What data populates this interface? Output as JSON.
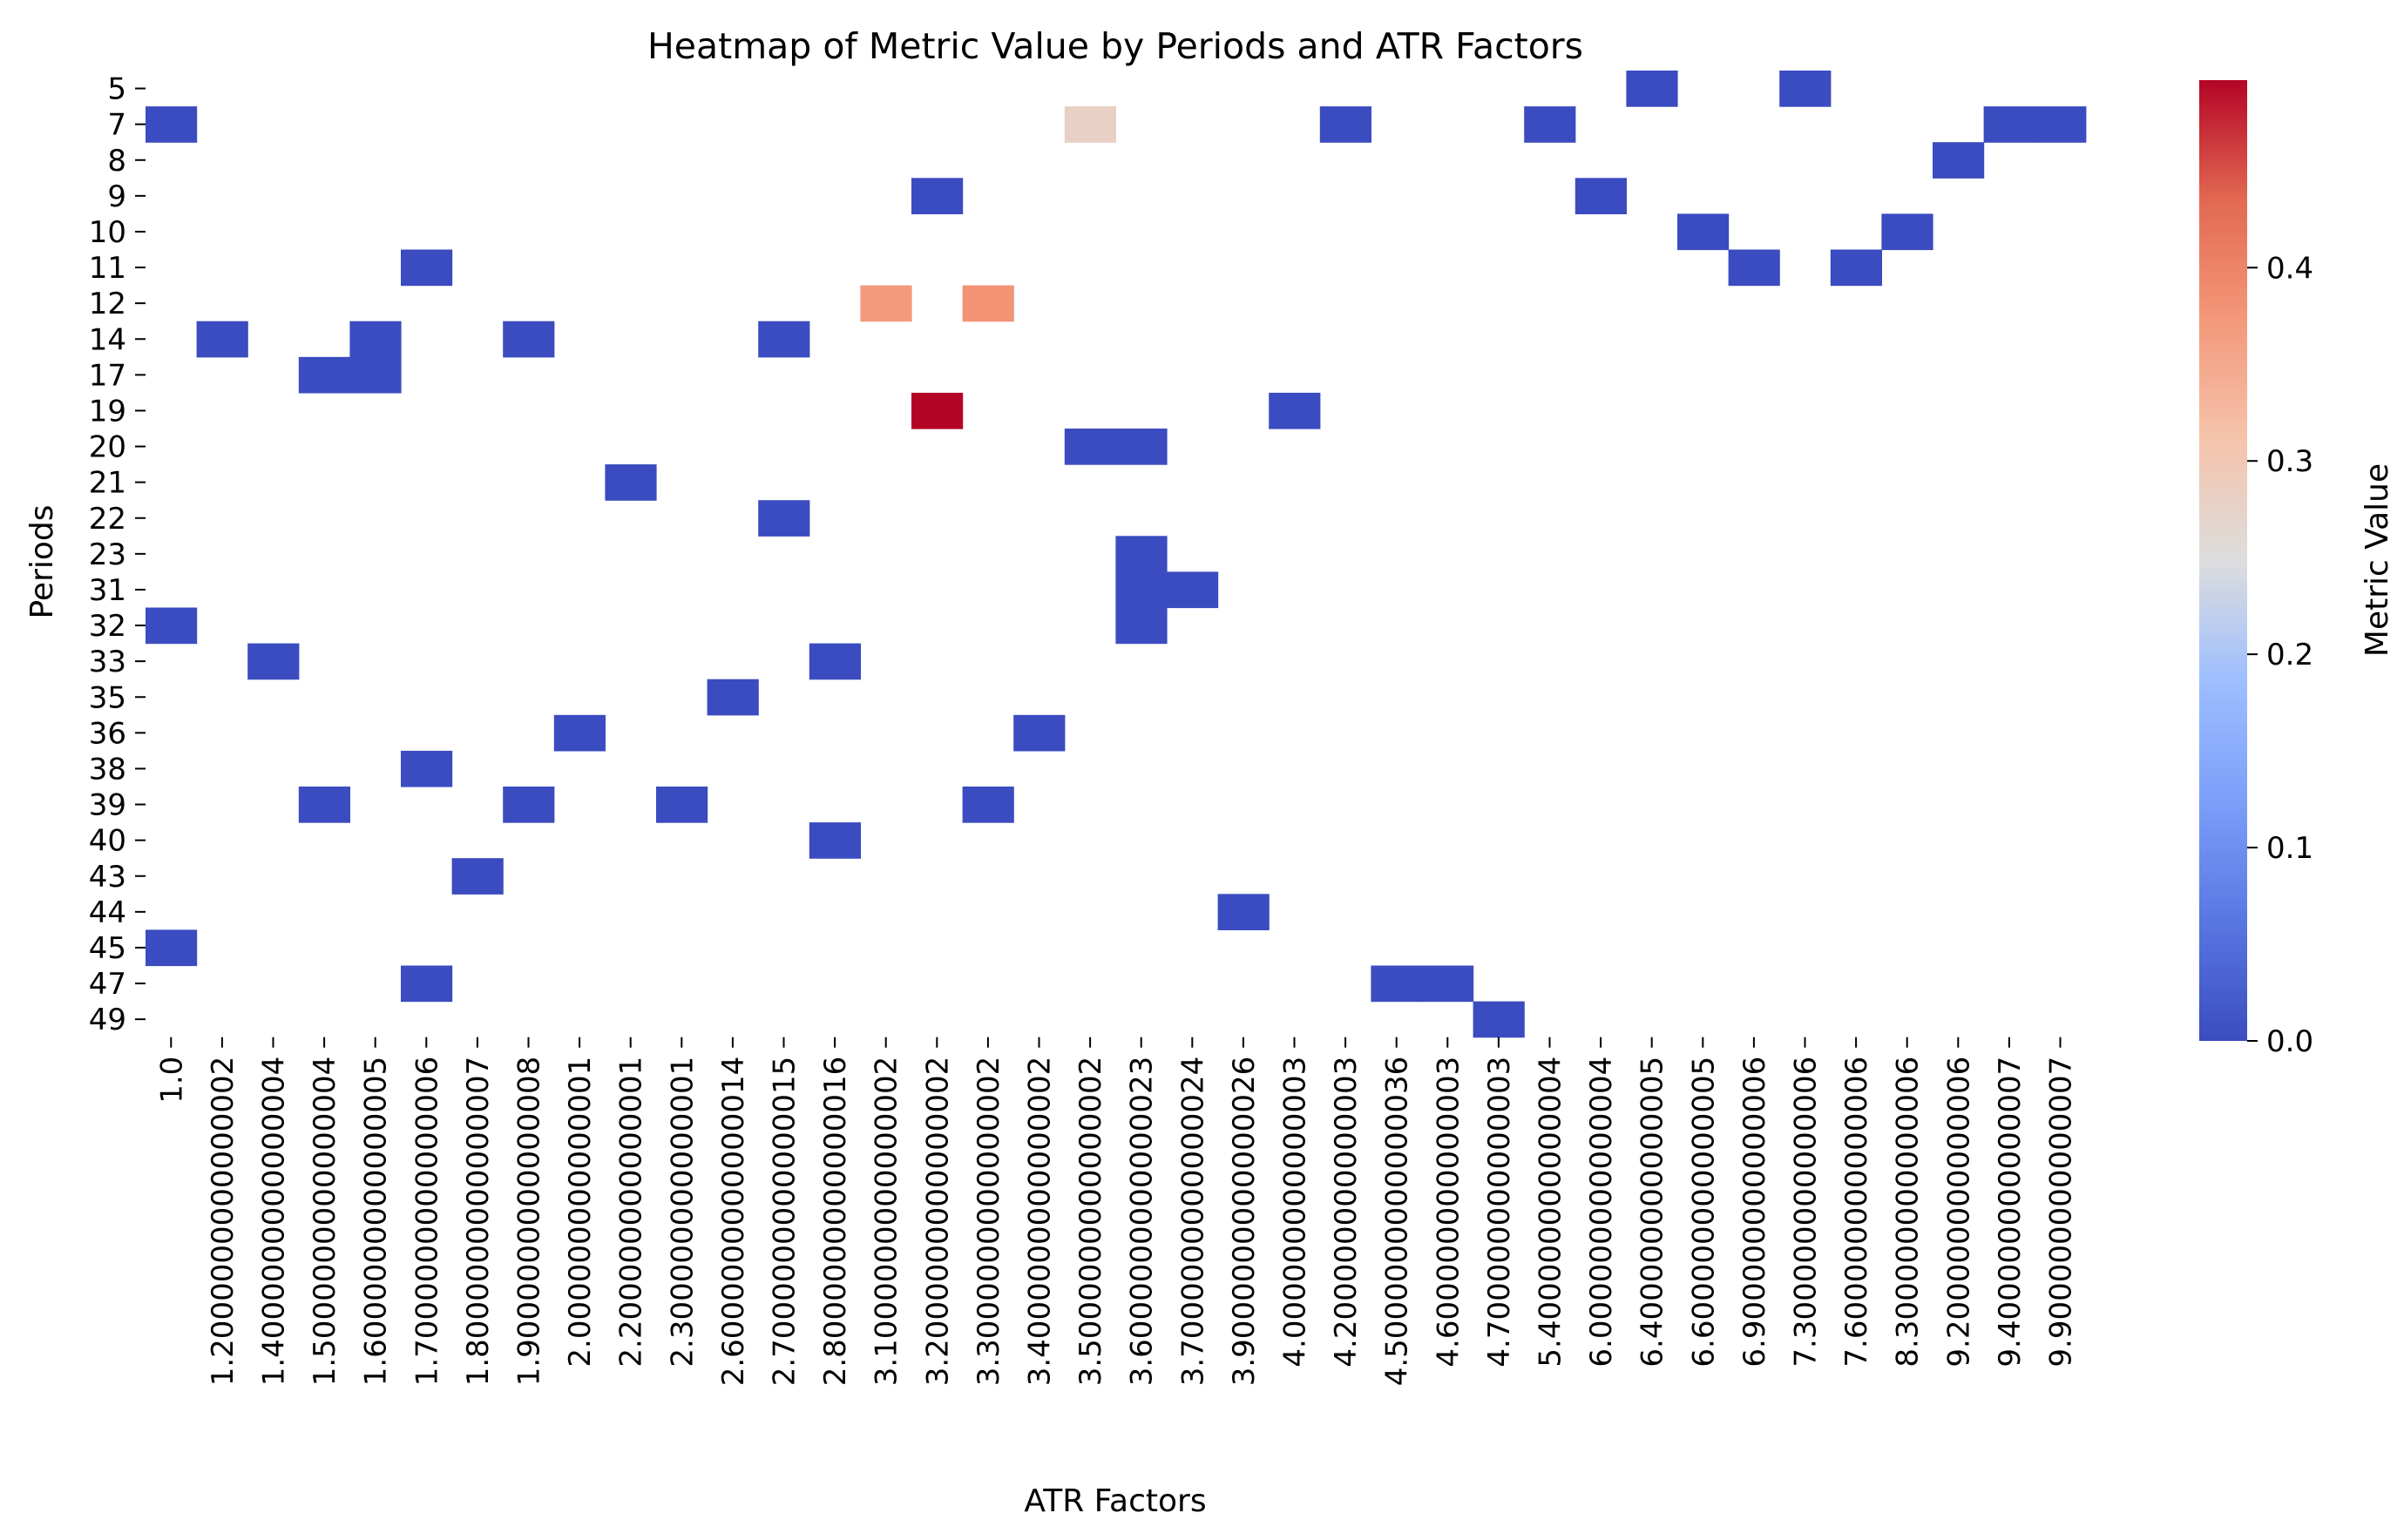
{
  "chart_data": {
    "type": "heatmap",
    "title": "Heatmap of Metric Value by Periods and ATR Factors",
    "xlabel": "ATR Factors",
    "ylabel": "Periods",
    "colorbar_label": "Metric Value",
    "colormap": "coolwarm",
    "color_range": [
      0.0,
      0.497
    ],
    "colorbar_ticks": [
      "0.0",
      "0.1",
      "0.2",
      "0.3",
      "0.4"
    ],
    "colors": {
      "low": "#3b4cc0",
      "mid": "#dddddd",
      "high": "#b40426"
    },
    "x_categories": [
      "1.0",
      "1.2000000000000002",
      "1.4000000000000004",
      "1.5000000000000004",
      "1.6000000000000005",
      "1.7000000000000006",
      "1.8000000000000007",
      "1.9000000000000008",
      "2.000000000000001",
      "2.200000000000001",
      "2.300000000000001",
      "2.6000000000000014",
      "2.7000000000000015",
      "2.8000000000000016",
      "3.1000000000000002",
      "3.2000000000000002",
      "3.3000000000000002",
      "3.4000000000000002",
      "3.5000000000000002",
      "3.6000000000000023",
      "3.7000000000000024",
      "3.9000000000000026",
      "4.000000000000003",
      "4.200000000000003",
      "4.5000000000000036",
      "4.600000000000003",
      "4.700000000000003",
      "5.400000000000004",
      "6.000000000000004",
      "6.400000000000005",
      "6.600000000000005",
      "6.900000000000006",
      "7.300000000000006",
      "7.600000000000006",
      "8.300000000000006",
      "9.200000000000006",
      "9.400000000000007",
      "9.900000000000007"
    ],
    "y_categories": [
      "5",
      "7",
      "8",
      "9",
      "10",
      "11",
      "12",
      "14",
      "17",
      "19",
      "20",
      "21",
      "22",
      "23",
      "31",
      "32",
      "33",
      "35",
      "36",
      "38",
      "39",
      "40",
      "43",
      "44",
      "45",
      "47",
      "49"
    ],
    "cells": [
      {
        "x": "6.400000000000005",
        "y": "5",
        "value": 0.0
      },
      {
        "x": "7.300000000000006",
        "y": "5",
        "value": 0.0
      },
      {
        "x": "1.0",
        "y": "7",
        "value": 0.0
      },
      {
        "x": "3.5000000000000002",
        "y": "7",
        "value": 0.28
      },
      {
        "x": "4.200000000000003",
        "y": "7",
        "value": 0.0
      },
      {
        "x": "5.400000000000004",
        "y": "7",
        "value": 0.0
      },
      {
        "x": "9.400000000000007",
        "y": "7",
        "value": 0.0
      },
      {
        "x": "9.900000000000007",
        "y": "7",
        "value": 0.0
      },
      {
        "x": "9.200000000000006",
        "y": "8",
        "value": 0.0
      },
      {
        "x": "3.2000000000000002",
        "y": "9",
        "value": 0.0
      },
      {
        "x": "6.000000000000004",
        "y": "9",
        "value": 0.0
      },
      {
        "x": "6.600000000000005",
        "y": "10",
        "value": 0.0
      },
      {
        "x": "8.300000000000006",
        "y": "10",
        "value": 0.0
      },
      {
        "x": "1.7000000000000006",
        "y": "11",
        "value": 0.0
      },
      {
        "x": "6.900000000000006",
        "y": "11",
        "value": 0.0
      },
      {
        "x": "7.600000000000006",
        "y": "11",
        "value": 0.0
      },
      {
        "x": "3.1000000000000002",
        "y": "12",
        "value": 0.37
      },
      {
        "x": "3.3000000000000002",
        "y": "12",
        "value": 0.38
      },
      {
        "x": "1.2000000000000002",
        "y": "14",
        "value": 0.0
      },
      {
        "x": "1.6000000000000005",
        "y": "14",
        "value": 0.0
      },
      {
        "x": "1.9000000000000008",
        "y": "14",
        "value": 0.0
      },
      {
        "x": "2.7000000000000015",
        "y": "14",
        "value": 0.0
      },
      {
        "x": "1.5000000000000004",
        "y": "17",
        "value": 0.0
      },
      {
        "x": "1.6000000000000005",
        "y": "17",
        "value": 0.0
      },
      {
        "x": "3.2000000000000002",
        "y": "19",
        "value": 0.497
      },
      {
        "x": "4.000000000000003",
        "y": "19",
        "value": 0.0
      },
      {
        "x": "3.5000000000000002",
        "y": "20",
        "value": 0.0
      },
      {
        "x": "3.6000000000000023",
        "y": "20",
        "value": 0.0
      },
      {
        "x": "2.200000000000001",
        "y": "21",
        "value": 0.0
      },
      {
        "x": "2.7000000000000015",
        "y": "22",
        "value": 0.0
      },
      {
        "x": "3.6000000000000023",
        "y": "23",
        "value": 0.0
      },
      {
        "x": "3.6000000000000023",
        "y": "31",
        "value": 0.0
      },
      {
        "x": "3.7000000000000024",
        "y": "31",
        "value": 0.0
      },
      {
        "x": "1.0",
        "y": "32",
        "value": 0.0
      },
      {
        "x": "3.6000000000000023",
        "y": "32",
        "value": 0.0
      },
      {
        "x": "1.4000000000000004",
        "y": "33",
        "value": 0.0
      },
      {
        "x": "2.8000000000000016",
        "y": "33",
        "value": 0.0
      },
      {
        "x": "2.6000000000000014",
        "y": "35",
        "value": 0.0
      },
      {
        "x": "2.000000000000001",
        "y": "36",
        "value": 0.0
      },
      {
        "x": "3.4000000000000002",
        "y": "36",
        "value": 0.0
      },
      {
        "x": "1.7000000000000006",
        "y": "38",
        "value": 0.0
      },
      {
        "x": "1.5000000000000004",
        "y": "39",
        "value": 0.0
      },
      {
        "x": "1.9000000000000008",
        "y": "39",
        "value": 0.0
      },
      {
        "x": "2.300000000000001",
        "y": "39",
        "value": 0.0
      },
      {
        "x": "3.3000000000000002",
        "y": "39",
        "value": 0.0
      },
      {
        "x": "2.8000000000000016",
        "y": "40",
        "value": 0.0
      },
      {
        "x": "1.8000000000000007",
        "y": "43",
        "value": 0.0
      },
      {
        "x": "3.9000000000000026",
        "y": "44",
        "value": 0.0
      },
      {
        "x": "1.0",
        "y": "45",
        "value": 0.0
      },
      {
        "x": "1.7000000000000006",
        "y": "47",
        "value": 0.0
      },
      {
        "x": "4.5000000000000036",
        "y": "47",
        "value": 0.0
      },
      {
        "x": "4.600000000000003",
        "y": "47",
        "value": 0.0
      },
      {
        "x": "4.700000000000003",
        "y": "49",
        "value": 0.0
      }
    ]
  }
}
